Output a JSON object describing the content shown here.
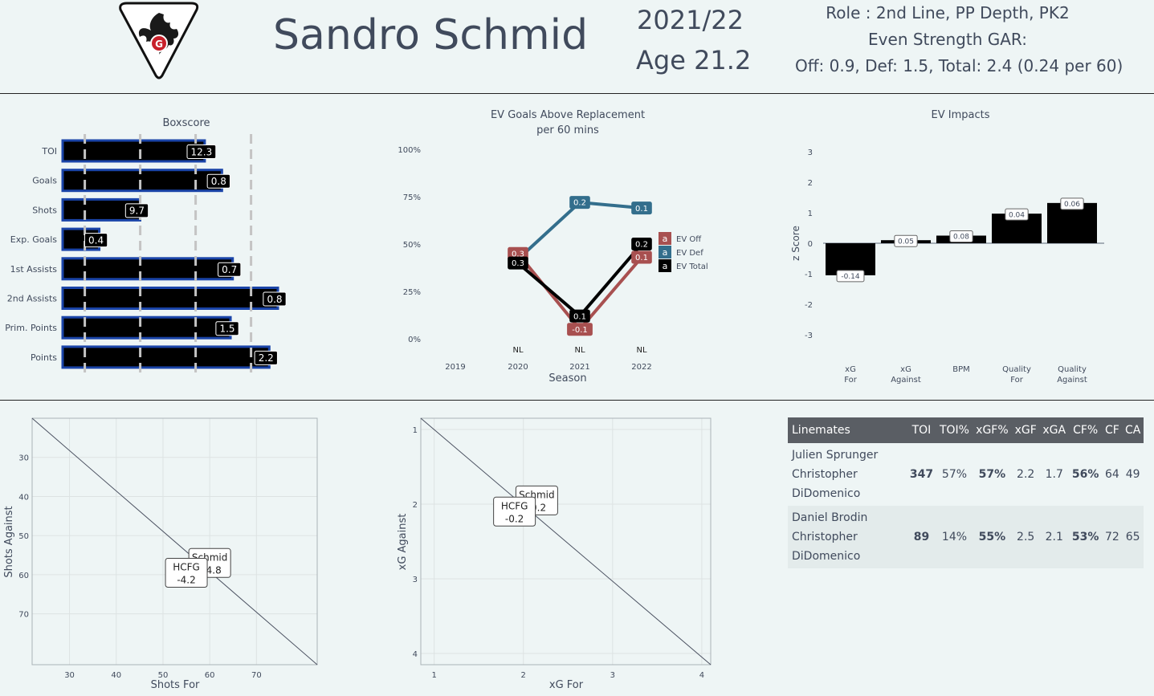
{
  "header": {
    "player_name": "Sandro Schmid",
    "season": "2021/22",
    "age": "Age 21.2",
    "role": "Role : 2nd Line, PP Depth, PK2",
    "gar_title": "Even Strength GAR:",
    "gar_values": "Off: 0.9,  Def: 1.5, Total: 2.4 (0.24 per 60)",
    "logo": "team-crest-dragon-logo"
  },
  "colors": {
    "background": "#eef5f5",
    "bar_fill": "#000000",
    "bar_outline": "#1a44a8",
    "ev_off": "#a85050",
    "ev_def": "#336e8c",
    "ev_total": "#000000",
    "table_header": "#5a5e64"
  },
  "chart_data": [
    {
      "type": "bar",
      "title": "Boxscore",
      "orientation": "horizontal",
      "categories": [
        "TOI",
        "Goals",
        "Shots",
        "Exp. Goals",
        "1st Assists",
        "2nd Assists",
        "Prim. Points",
        "Points"
      ],
      "values": [
        12.3,
        0.8,
        9.7,
        0.4,
        0.7,
        0.8,
        1.5,
        2.2
      ],
      "value_labels": [
        "12.3",
        "0.8",
        "9.7",
        "0.4",
        "0.7",
        "0.8",
        "1.5",
        "2.2"
      ],
      "percentiles": [
        0.66,
        0.74,
        0.36,
        0.17,
        0.79,
        1.0,
        0.78,
        0.96
      ],
      "reference_lines": [
        0.1,
        0.35,
        0.6,
        0.85
      ]
    },
    {
      "type": "line",
      "title": "EV Goals Above Replacement",
      "subtitle": "per 60 mins",
      "xlabel": "Season",
      "x": [
        2019,
        2020,
        2021,
        2022
      ],
      "league_labels": [
        "",
        "NL",
        "NL",
        "NL"
      ],
      "yticks": [
        "0%",
        "25%",
        "50%",
        "75%",
        "100%"
      ],
      "ylim": [
        0,
        1
      ],
      "legend_position": "right",
      "series": [
        {
          "name": "EV Off",
          "points": [
            [
              2020,
              0.45
            ],
            [
              2021,
              0.05
            ],
            [
              2022,
              0.43
            ]
          ],
          "labels": [
            "0.3",
            "-0.1",
            "0.1"
          ]
        },
        {
          "name": "EV Def",
          "points": [
            [
              2020,
              0.42
            ],
            [
              2021,
              0.72
            ],
            [
              2022,
              0.69
            ]
          ],
          "labels": [
            "",
            "0.2",
            "0.1"
          ]
        },
        {
          "name": "EV Total",
          "points": [
            [
              2020,
              0.4
            ],
            [
              2021,
              0.12
            ],
            [
              2022,
              0.5
            ]
          ],
          "labels": [
            "0.3",
            "0.1",
            "0.2"
          ]
        }
      ],
      "legend_marker": "a"
    },
    {
      "type": "bar",
      "title": "EV Impacts",
      "ylabel": "z Score",
      "ylim": [
        -3,
        3
      ],
      "yticks": [
        -3,
        -2,
        -1,
        0,
        1,
        2,
        3
      ],
      "categories": [
        [
          "xG",
          "For"
        ],
        [
          "xG",
          "Against"
        ],
        [
          "BPM"
        ],
        [
          "Quality",
          "For"
        ],
        [
          "Quality",
          "Against"
        ]
      ],
      "values": [
        -1.05,
        0.1,
        0.25,
        0.97,
        1.32
      ],
      "value_labels": [
        "-0.14",
        "0.05",
        "0.08",
        "0.04",
        "0.06"
      ]
    },
    {
      "type": "scatter",
      "xlabel": "Shots For",
      "ylabel": "Shots Against",
      "xlim": [
        22,
        83
      ],
      "ylim": [
        20,
        83
      ],
      "y_reversed": true,
      "xticks": [
        30,
        40,
        50,
        60,
        70
      ],
      "yticks": [
        30,
        40,
        50,
        60,
        70
      ],
      "diagonal": true,
      "points": [
        {
          "name": "Schmid",
          "value": "+4.8",
          "x": 60,
          "y": 57
        },
        {
          "name": "HCFG",
          "value": "-4.2",
          "x": 55,
          "y": 59.5
        }
      ]
    },
    {
      "type": "scatter",
      "xlabel": "xG For",
      "ylabel": "xG Against",
      "xlim": [
        0.85,
        4.1
      ],
      "ylim": [
        0.85,
        4.15
      ],
      "y_reversed": true,
      "xticks": [
        1,
        2,
        3,
        4
      ],
      "yticks": [
        1,
        2,
        3,
        4
      ],
      "diagonal": true,
      "points": [
        {
          "name": "Schmid",
          "value": "-0.2",
          "x": 2.15,
          "y": 1.95
        },
        {
          "name": "HCFG",
          "value": "-0.2",
          "x": 1.9,
          "y": 2.1
        }
      ]
    }
  ],
  "linemates": {
    "headers": [
      "Linemates",
      "TOI",
      "TOI%",
      "xGF%",
      "xGF",
      "xGA",
      "CF%",
      "CF",
      "CA"
    ],
    "rows": [
      {
        "names": [
          "Julien Sprunger",
          "Christopher",
          "DiDomenico"
        ],
        "toi": "347",
        "toi_pct": "57%",
        "xgf_pct": "57%",
        "xgf": "2.2",
        "xga": "1.7",
        "cf_pct": "56%",
        "cf": "64",
        "ca": "49"
      },
      {
        "names": [
          "Daniel Brodin",
          "Christopher",
          "DiDomenico"
        ],
        "toi": "89",
        "toi_pct": "14%",
        "xgf_pct": "55%",
        "xgf": "2.5",
        "xga": "2.1",
        "cf_pct": "53%",
        "cf": "72",
        "ca": "65"
      }
    ]
  }
}
